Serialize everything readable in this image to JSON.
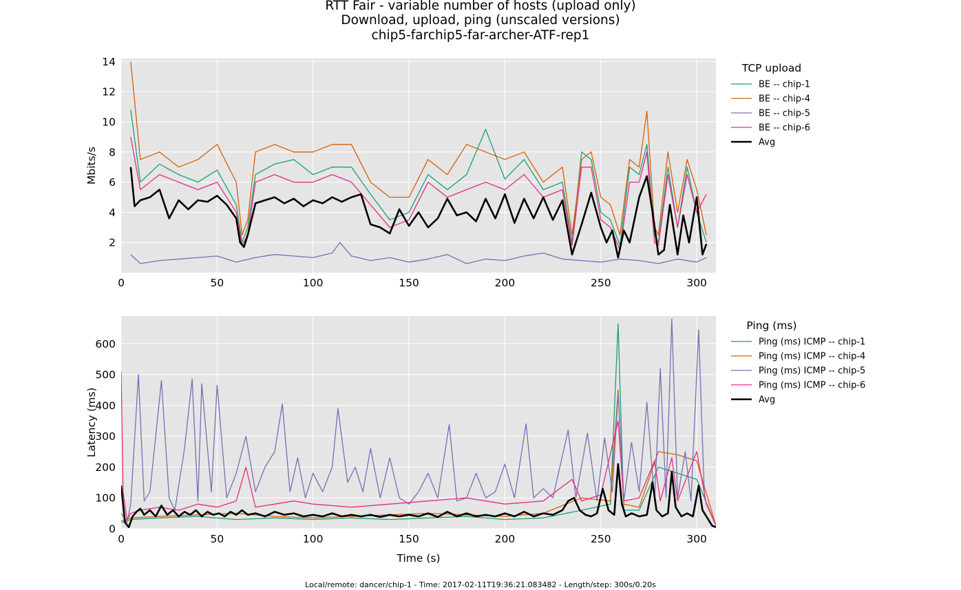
{
  "titles": {
    "line1": "RTT Fair - variable number of hosts (upload only)",
    "line2": "Download, upload, ping (unscaled versions)",
    "line3": "chip5-farchip5-far-archer-ATF-rep1"
  },
  "footer": "Local/remote: dancer/chip-1 - Time: 2017-02-11T19:36:21.083482 - Length/step: 300s/0.20s",
  "colors": {
    "chip-1": "#1b9e77",
    "chip-4": "#d95f02",
    "chip-5": "#7570b3",
    "chip-6": "#e7298a",
    "avg": "#000000",
    "plot_bg": "#e5e5e5",
    "grid": "#ffffff"
  },
  "chart_data": [
    {
      "type": "line",
      "xlabel": "",
      "ylabel": "Mbits/s",
      "xlim": [
        0,
        310
      ],
      "ylim": [
        0,
        14.2
      ],
      "xticks": [
        0,
        50,
        100,
        150,
        200,
        250,
        300
      ],
      "yticks": [
        2,
        4,
        6,
        8,
        10,
        12,
        14
      ],
      "grid": true,
      "legend_title": "TCP upload",
      "legend_position": "right",
      "series": [
        {
          "name": "BE -- chip-1",
          "color_key": "chip-1",
          "x": [
            5,
            10,
            20,
            30,
            40,
            50,
            60,
            63,
            66,
            70,
            80,
            90,
            100,
            110,
            120,
            130,
            140,
            150,
            160,
            170,
            180,
            190,
            200,
            210,
            220,
            230,
            235,
            240,
            245,
            250,
            255,
            260,
            265,
            270,
            274,
            278,
            280,
            285,
            290,
            295,
            300,
            305
          ],
          "y": [
            10.8,
            6.0,
            7.2,
            6.5,
            6.0,
            6.8,
            4.5,
            2.0,
            3.0,
            6.5,
            7.2,
            7.5,
            6.5,
            7.0,
            7.0,
            5.2,
            3.5,
            4.0,
            6.5,
            5.5,
            6.5,
            9.5,
            6.2,
            7.5,
            5.5,
            6.0,
            2.0,
            8.0,
            7.5,
            4.0,
            3.5,
            1.8,
            7.0,
            6.5,
            8.5,
            2.5,
            2.0,
            7.0,
            3.0,
            7.0,
            4.0,
            2.0
          ]
        },
        {
          "name": "BE -- chip-4",
          "color_key": "chip-4",
          "x": [
            5,
            10,
            20,
            30,
            40,
            50,
            60,
            63,
            66,
            70,
            80,
            90,
            100,
            110,
            120,
            130,
            140,
            150,
            160,
            170,
            180,
            190,
            200,
            210,
            220,
            230,
            235,
            240,
            245,
            250,
            255,
            260,
            265,
            270,
            274,
            278,
            280,
            285,
            290,
            295,
            300,
            305
          ],
          "y": [
            14.0,
            7.5,
            8.0,
            7.0,
            7.5,
            8.5,
            6.0,
            2.5,
            3.5,
            8.0,
            8.5,
            8.0,
            8.0,
            8.5,
            8.5,
            6.0,
            5.0,
            5.0,
            7.5,
            6.5,
            8.5,
            8.0,
            7.5,
            8.0,
            6.0,
            7.0,
            2.5,
            7.5,
            8.0,
            5.0,
            4.5,
            2.5,
            7.5,
            7.0,
            10.7,
            3.0,
            2.5,
            8.0,
            4.0,
            7.5,
            5.5,
            2.5
          ]
        },
        {
          "name": "BE -- chip-5",
          "color_key": "chip-5",
          "x": [
            5,
            10,
            20,
            30,
            40,
            50,
            60,
            70,
            80,
            90,
            100,
            110,
            114,
            120,
            130,
            140,
            150,
            160,
            170,
            180,
            190,
            200,
            210,
            220,
            230,
            240,
            250,
            260,
            270,
            280,
            290,
            300,
            305
          ],
          "y": [
            1.2,
            0.6,
            0.8,
            0.9,
            1.0,
            1.1,
            0.7,
            1.0,
            1.2,
            1.1,
            1.0,
            1.3,
            2.0,
            1.1,
            0.8,
            1.0,
            0.7,
            0.9,
            1.2,
            0.6,
            0.9,
            0.8,
            1.1,
            1.3,
            0.9,
            0.8,
            0.7,
            0.9,
            0.8,
            0.6,
            0.9,
            0.7,
            1.0
          ]
        },
        {
          "name": "BE -- chip-6",
          "color_key": "chip-6",
          "x": [
            5,
            10,
            20,
            30,
            40,
            50,
            60,
            63,
            66,
            70,
            80,
            90,
            100,
            110,
            120,
            130,
            140,
            150,
            160,
            170,
            180,
            190,
            200,
            210,
            220,
            230,
            235,
            240,
            245,
            250,
            255,
            260,
            265,
            270,
            274,
            278,
            280,
            285,
            290,
            295,
            300,
            305
          ],
          "y": [
            9.0,
            5.5,
            6.5,
            6.0,
            5.5,
            6.0,
            4.0,
            1.8,
            2.5,
            6.0,
            6.5,
            6.0,
            6.0,
            6.5,
            6.0,
            4.5,
            3.0,
            3.5,
            6.0,
            5.0,
            5.5,
            6.0,
            5.5,
            6.5,
            5.0,
            5.5,
            1.8,
            7.0,
            7.0,
            3.5,
            3.0,
            1.5,
            6.0,
            6.0,
            8.0,
            2.0,
            1.8,
            6.5,
            3.0,
            6.5,
            4.0,
            5.2
          ]
        },
        {
          "name": "Avg",
          "color_key": "avg",
          "x": [
            5,
            7,
            10,
            15,
            20,
            25,
            30,
            35,
            40,
            45,
            50,
            55,
            60,
            62,
            64,
            66,
            70,
            75,
            80,
            85,
            90,
            95,
            100,
            105,
            110,
            115,
            120,
            125,
            130,
            135,
            140,
            145,
            150,
            155,
            160,
            165,
            170,
            175,
            180,
            185,
            190,
            195,
            200,
            205,
            210,
            215,
            220,
            225,
            230,
            235,
            240,
            245,
            250,
            253,
            256,
            259,
            262,
            265,
            270,
            274,
            277,
            280,
            283,
            286,
            290,
            293,
            296,
            300,
            303,
            305
          ],
          "y": [
            7.0,
            4.4,
            4.8,
            5.0,
            5.5,
            3.6,
            4.8,
            4.2,
            4.8,
            4.7,
            5.1,
            4.5,
            3.6,
            2.0,
            1.7,
            2.5,
            4.6,
            4.8,
            5.0,
            4.6,
            4.9,
            4.4,
            4.8,
            4.6,
            5.0,
            4.7,
            5.0,
            5.2,
            3.2,
            3.0,
            2.6,
            4.2,
            3.1,
            4.0,
            3.0,
            3.6,
            4.9,
            3.8,
            4.0,
            3.4,
            4.9,
            3.6,
            5.2,
            3.3,
            4.9,
            3.6,
            5.0,
            3.5,
            4.8,
            1.2,
            3.2,
            5.3,
            3.0,
            2.0,
            2.8,
            1.0,
            2.8,
            2.0,
            5.0,
            6.4,
            4.0,
            1.2,
            1.5,
            4.5,
            1.2,
            3.8,
            2.0,
            5.0,
            1.2,
            1.9
          ]
        }
      ]
    },
    {
      "type": "line",
      "xlabel": "Time (s)",
      "ylabel": "Latency (ms)",
      "xlim": [
        0,
        310
      ],
      "ylim": [
        0,
        690
      ],
      "xticks": [
        0,
        50,
        100,
        150,
        200,
        250,
        300
      ],
      "yticks": [
        0,
        100,
        200,
        300,
        400,
        500,
        600
      ],
      "grid": true,
      "legend_title": "Ping (ms)",
      "legend_position": "right",
      "series": [
        {
          "name": "Ping (ms) ICMP -- chip-1",
          "color_key": "chip-1",
          "x": [
            0,
            5,
            20,
            40,
            60,
            80,
            100,
            120,
            140,
            160,
            180,
            200,
            220,
            240,
            255,
            259,
            262,
            270,
            280,
            290,
            300,
            310
          ],
          "y": [
            20,
            30,
            35,
            40,
            30,
            35,
            30,
            35,
            30,
            35,
            40,
            30,
            35,
            60,
            80,
            665,
            60,
            60,
            200,
            180,
            160,
            10
          ]
        },
        {
          "name": "Ping (ms) ICMP -- chip-4",
          "color_key": "chip-4",
          "x": [
            0,
            5,
            20,
            40,
            60,
            80,
            100,
            120,
            140,
            160,
            180,
            200,
            220,
            240,
            255,
            259,
            262,
            270,
            280,
            290,
            300,
            310
          ],
          "y": [
            25,
            35,
            40,
            45,
            50,
            40,
            35,
            40,
            45,
            50,
            45,
            40,
            50,
            100,
            90,
            450,
            80,
            70,
            250,
            240,
            220,
            10
          ]
        },
        {
          "name": "Ping (ms) ICMP -- chip-5",
          "color_key": "chip-5",
          "x": [
            0,
            3,
            5,
            9,
            12,
            15,
            21,
            25,
            28,
            33,
            37,
            40,
            42,
            47,
            50,
            55,
            60,
            65,
            70,
            75,
            80,
            84,
            88,
            92,
            96,
            100,
            105,
            110,
            113,
            118,
            122,
            126,
            130,
            135,
            140,
            145,
            150,
            155,
            160,
            165,
            171,
            175,
            180,
            185,
            190,
            195,
            200,
            205,
            211,
            215,
            220,
            225,
            233,
            237,
            243,
            248,
            252,
            256,
            259,
            262,
            266,
            270,
            274,
            278,
            281,
            284,
            287,
            290,
            294,
            297,
            301,
            304,
            308,
            310
          ],
          "y": [
            50,
            20,
            80,
            500,
            90,
            120,
            480,
            100,
            60,
            260,
            485,
            90,
            470,
            120,
            465,
            100,
            180,
            300,
            120,
            200,
            250,
            405,
            120,
            230,
            100,
            180,
            120,
            200,
            390,
            150,
            200,
            120,
            260,
            100,
            230,
            100,
            80,
            120,
            180,
            100,
            338,
            90,
            100,
            180,
            100,
            120,
            210,
            100,
            340,
            100,
            130,
            100,
            320,
            100,
            310,
            90,
            295,
            120,
            440,
            90,
            280,
            120,
            410,
            90,
            520,
            100,
            680,
            100,
            250,
            90,
            645,
            100,
            40,
            10
          ]
        },
        {
          "name": "Ping (ms) ICMP -- chip-6",
          "color_key": "chip-6",
          "x": [
            0,
            1,
            3,
            5,
            10,
            20,
            30,
            40,
            50,
            60,
            65,
            70,
            80,
            90,
            100,
            120,
            140,
            160,
            180,
            200,
            220,
            235,
            240,
            250,
            259,
            262,
            270,
            278,
            281,
            287,
            290,
            300,
            305,
            310
          ],
          "y": [
            510,
            120,
            30,
            50,
            60,
            70,
            60,
            80,
            70,
            90,
            200,
            70,
            80,
            90,
            80,
            70,
            80,
            90,
            100,
            80,
            90,
            160,
            90,
            110,
            350,
            90,
            100,
            220,
            90,
            230,
            90,
            250,
            80,
            10
          ]
        },
        {
          "name": "Avg",
          "color_key": "avg",
          "x": [
            0,
            2,
            4,
            6,
            8,
            10,
            12,
            15,
            18,
            21,
            24,
            27,
            30,
            33,
            36,
            39,
            42,
            45,
            48,
            51,
            54,
            57,
            60,
            63,
            66,
            70,
            75,
            80,
            85,
            90,
            95,
            100,
            105,
            110,
            115,
            120,
            125,
            130,
            135,
            140,
            145,
            150,
            155,
            160,
            165,
            170,
            175,
            180,
            185,
            190,
            195,
            200,
            205,
            210,
            215,
            220,
            225,
            230,
            233,
            236,
            239,
            242,
            245,
            248,
            251,
            254,
            257,
            259,
            261,
            263,
            266,
            270,
            274,
            277,
            279,
            282,
            285,
            287,
            289,
            292,
            295,
            298,
            301,
            303,
            306,
            308,
            310
          ],
          "y": [
            140,
            20,
            5,
            40,
            55,
            65,
            45,
            60,
            40,
            75,
            45,
            60,
            40,
            55,
            45,
            60,
            40,
            55,
            45,
            50,
            40,
            55,
            45,
            60,
            45,
            50,
            40,
            55,
            45,
            50,
            40,
            45,
            40,
            50,
            40,
            45,
            40,
            45,
            38,
            45,
            40,
            45,
            40,
            50,
            38,
            55,
            40,
            50,
            40,
            45,
            40,
            50,
            40,
            55,
            40,
            50,
            45,
            60,
            90,
            100,
            60,
            45,
            40,
            50,
            130,
            60,
            45,
            210,
            80,
            40,
            50,
            40,
            45,
            150,
            60,
            40,
            50,
            185,
            70,
            40,
            50,
            40,
            140,
            60,
            30,
            10,
            5
          ]
        }
      ]
    }
  ]
}
